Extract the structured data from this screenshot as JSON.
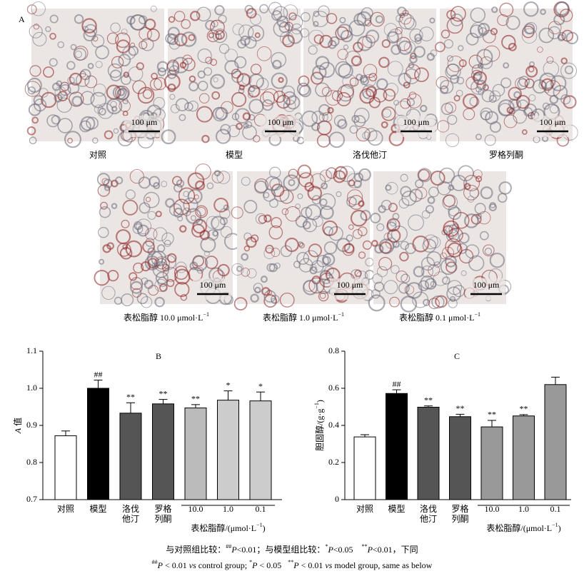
{
  "panel_label": "A",
  "panels": [
    {
      "label": [
        {
          "text": "对照"
        }
      ],
      "scale": "100 μm"
    },
    {
      "label": [
        {
          "text": "模型"
        }
      ],
      "scale": "100 μm"
    },
    {
      "label": [
        {
          "text": "洛伐他汀"
        }
      ],
      "scale": "100 μm"
    },
    {
      "label": [
        {
          "text": "罗格列酮"
        }
      ],
      "scale": "100 μm"
    },
    {
      "label": [
        {
          "text": "表松脂醇 10.0 μmol·L"
        },
        {
          "text": "−1",
          "style": "sup"
        }
      ],
      "scale": "100 μm"
    },
    {
      "label": [
        {
          "text": "表松脂醇 1.0 μmol·L"
        },
        {
          "text": "−1",
          "style": "sup"
        }
      ],
      "scale": "100 μm"
    },
    {
      "label": [
        {
          "text": "表松脂醇 0.1 μmol·L"
        },
        {
          "text": "−1",
          "style": "sup"
        }
      ],
      "scale": "100 μm"
    }
  ],
  "chart_data": [
    {
      "type": "bar",
      "title": "B",
      "y_label": [
        {
          "text": "A",
          "style": "italic"
        },
        {
          "text": " 值"
        }
      ],
      "categories": [
        "对照",
        "模型",
        "洛伐他汀",
        "罗格列酮",
        "10.0",
        "1.0",
        "0.1"
      ],
      "grouped": [
        false,
        false,
        false,
        false,
        true,
        true,
        true
      ],
      "group_label": [
        {
          "text": "表松脂醇/(μmol·L"
        },
        {
          "text": "−1",
          "style": "sup"
        },
        {
          "text": ")"
        }
      ],
      "values": [
        0.872,
        1.0,
        0.933,
        0.958,
        0.947,
        0.968,
        0.966
      ],
      "errors": [
        0.013,
        0.022,
        0.028,
        0.012,
        0.009,
        0.025,
        0.024
      ],
      "colors": [
        "#ffffff",
        "#000000",
        "#555555",
        "#555555",
        "#bbbbbb",
        "#cccccc",
        "#cccccc"
      ],
      "annotations": [
        null,
        "##",
        "**",
        "**",
        "**",
        "*",
        "*"
      ],
      "ylim": [
        0.7,
        1.1
      ],
      "yticks": [
        0.7,
        0.8,
        0.9,
        {
          "value": 1.0,
          "label": "1.0"
        },
        1.1
      ]
    },
    {
      "type": "bar",
      "title": "C",
      "y_label": [
        {
          "text": "胆固醇/(g·g"
        },
        {
          "text": "−1",
          "style": "sup"
        },
        {
          "text": ")"
        }
      ],
      "categories": [
        "对照",
        "模型",
        "洛伐他汀",
        "罗格列酮",
        "10.0",
        "1.0",
        "0.1"
      ],
      "grouped": [
        false,
        false,
        false,
        false,
        true,
        true,
        true
      ],
      "group_label": [
        {
          "text": "表松脂醇/(μmol·L"
        },
        {
          "text": "−1",
          "style": "sup"
        },
        {
          "text": ")"
        }
      ],
      "values": [
        0.338,
        0.572,
        0.498,
        0.447,
        0.392,
        0.451,
        0.62
      ],
      "errors": [
        0.012,
        0.02,
        0.007,
        0.013,
        0.035,
        0.007,
        0.04
      ],
      "colors": [
        "#ffffff",
        "#000000",
        "#555555",
        "#555555",
        "#999999",
        "#999999",
        "#999999"
      ],
      "annotations": [
        null,
        "##",
        "**",
        "**",
        "**",
        "**",
        null
      ],
      "ylim": [
        0,
        0.8
      ],
      "yticks": [
        0,
        0.2,
        0.4,
        0.6,
        0.8
      ]
    }
  ],
  "footnotes": [
    [
      {
        "text": "与对照组比较："
      },
      {
        "text": "##",
        "style": "sup"
      },
      {
        "text": "P",
        "style": "italic"
      },
      {
        "text": "<0.01；与模型组比较："
      },
      {
        "text": "*",
        "style": "sup"
      },
      {
        "text": "P",
        "style": "italic"
      },
      {
        "text": "<0.05　"
      },
      {
        "text": "**",
        "style": "sup"
      },
      {
        "text": "P",
        "style": "italic"
      },
      {
        "text": "<0.01，下同"
      }
    ],
    [
      {
        "text": "##",
        "style": "sup"
      },
      {
        "text": "P",
        "style": "italic"
      },
      {
        "text": " < 0.01 "
      },
      {
        "text": "vs",
        "style": "italic"
      },
      {
        "text": " control group; "
      },
      {
        "text": "*",
        "style": "sup"
      },
      {
        "text": "P",
        "style": "italic"
      },
      {
        "text": " < 0.05   "
      },
      {
        "text": "**",
        "style": "sup"
      },
      {
        "text": "P",
        "style": "italic"
      },
      {
        "text": " < 0.01 "
      },
      {
        "text": "vs",
        "style": "italic"
      },
      {
        "text": " model group, same as below"
      }
    ]
  ]
}
